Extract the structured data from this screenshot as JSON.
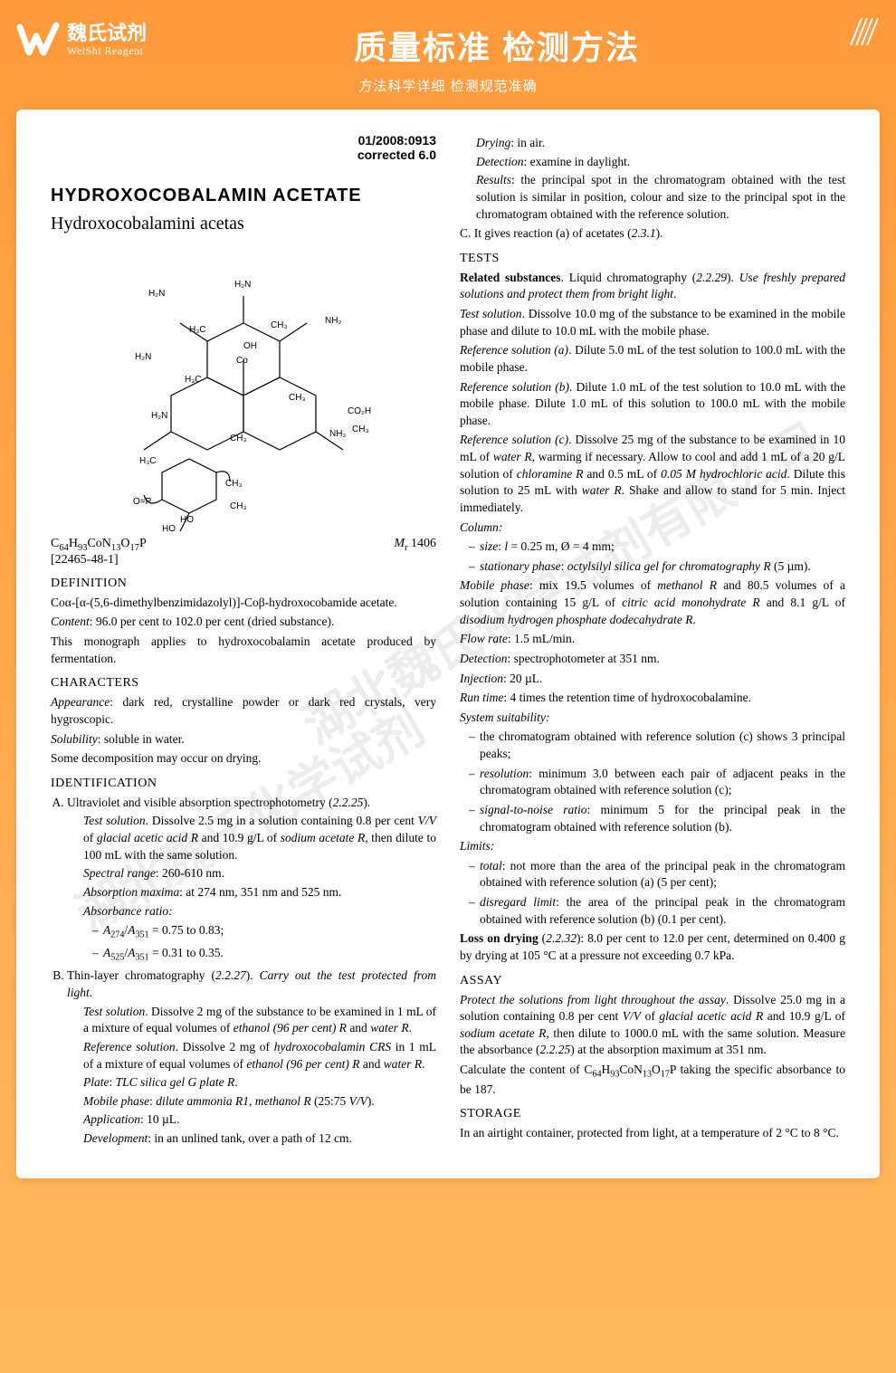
{
  "brand": {
    "cn": "魏氏试剂",
    "en": "WeiShi Reagent"
  },
  "header": {
    "title": "质量标准 检测方法",
    "subtitle": "方法科学详细 检测规范准确"
  },
  "meta": {
    "line1": "01/2008:0913",
    "line2": "corrected 6.0"
  },
  "mono": {
    "title": "HYDROXOCOBALAMIN ACETATE",
    "latin": "Hydroxocobalamini acetas",
    "formula": "C64H93CoN13O17P",
    "formula_html": "C<sub>64</sub>H<sub>93</sub>CoN<sub>13</sub>O<sub>17</sub>P",
    "mr": "Mr 1406",
    "mr_html": "<span class='ital'>M</span><sub>r</sub> 1406",
    "cas": "[22465-48-1]"
  },
  "def": {
    "head": "DEFINITION",
    "name": "Coα-[α-(5,6-dimethylbenzimidazolyl)]-Coβ-hydroxocobamide acetate.",
    "content": "Content: 96.0 per cent to 102.0 per cent (dried substance).",
    "note": "This monograph applies to hydroxocobalamin acetate produced by fermentation."
  },
  "char": {
    "head": "CHARACTERS",
    "appearance": "Appearance: dark red, crystalline powder or dark red crystals, very hygroscopic.",
    "solubility": "Solubility: soluble in water.",
    "note": "Some decomposition may occur on drying."
  },
  "ident": {
    "head": "IDENTIFICATION",
    "a": {
      "intro": "Ultraviolet and visible absorption spectrophotometry (2.2.25).",
      "test": "Test solution. Dissolve 2.5 mg in a solution containing 0.8 per cent V/V of glacial acetic acid R and 10.9 g/L of sodium acetate R, then dilute to 100 mL with the same solution.",
      "range": "Spectral range: 260-610 nm.",
      "maxima": "Absorption maxima: at 274 nm, 351 nm and 525 nm.",
      "ratio_head": "Absorbance ratio:",
      "r1": "A274/A351 = 0.75 to 0.83;",
      "r1_html": "<span class='ital'>A</span><sub>274</sub>/<span class='ital'>A</span><sub>351</sub> = 0.75 to 0.83;",
      "r2": "A525/A351 = 0.31 to 0.35.",
      "r2_html": "<span class='ital'>A</span><sub>525</sub>/<span class='ital'>A</span><sub>351</sub> = 0.31 to 0.35."
    },
    "b": {
      "intro": "Thin-layer chromatography (2.2.27). Carry out the test protected from light.",
      "test": "Test solution. Dissolve 2 mg of the substance to be examined in 1 mL of a mixture of equal volumes of ethanol (96 per cent) R and water R.",
      "ref": "Reference solution. Dissolve 2 mg of hydroxocobalamin CRS in 1 mL of a mixture of equal volumes of ethanol (96 per cent) R and water R.",
      "plate": "Plate: TLC silica gel G plate R.",
      "mobile": "Mobile phase: dilute ammonia R1, methanol R (25:75 V/V).",
      "app": "Application: 10 µL.",
      "dev": "Development: in an unlined tank, over a path of 12 cm.",
      "dry": "Drying: in air.",
      "det": "Detection: examine in daylight.",
      "res": "Results: the principal spot in the chromatogram obtained with the test solution is similar in position, colour and size to the principal spot in the chromatogram obtained with the reference solution."
    },
    "c": "It gives reaction (a) of acetates (2.3.1)."
  },
  "tests": {
    "head": "TESTS",
    "rel": {
      "head": "Related substances. Liquid chromatography (2.2.29). Use freshly prepared solutions and protect them from bright light.",
      "test": "Test solution. Dissolve 10.0 mg of the substance to be examined in the mobile phase and dilute to 10.0 mL with the mobile phase.",
      "refa": "Reference solution (a). Dilute 5.0 mL of the test solution to 100.0 mL with the mobile phase.",
      "refb": "Reference solution (b). Dilute 1.0 mL of the test solution to 10.0 mL with the mobile phase. Dilute 1.0 mL of this solution to 100.0 mL with the mobile phase.",
      "refc": "Reference solution (c). Dissolve 25 mg of the substance to be examined in 10 mL of water R, warming if necessary. Allow to cool and add 1 mL of a 20 g/L solution of chloramine R and 0.5 mL of 0.05 M hydrochloric acid. Dilute this solution to 25 mL with water R. Shake and allow to stand for 5 min. Inject immediately.",
      "column_head": "Column:",
      "col1": "size: l = 0.25 m, Ø = 4 mm;",
      "col2": "stationary phase: octylsilyl silica gel for chromatography R (5 µm).",
      "mobile": "Mobile phase: mix 19.5 volumes of methanol R and 80.5 volumes of a solution containing 15 g/L of citric acid monohydrate R and 8.1 g/L of disodium hydrogen phosphate dodecahydrate R.",
      "flow": "Flow rate: 1.5 mL/min.",
      "det": "Detection: spectrophotometer at 351 nm.",
      "inj": "Injection: 20 µL.",
      "run": "Run time: 4 times the retention time of hydroxocobalamine.",
      "sys_head": "System suitability:",
      "sys1": "the chromatogram obtained with reference solution (c) shows 3 principal peaks;",
      "sys2": "resolution: minimum 3.0 between each pair of adjacent peaks in the chromatogram obtained with reference solution (c);",
      "sys3": "signal-to-noise ratio: minimum 5 for the principal peak in the chromatogram obtained with reference solution (b).",
      "lim_head": "Limits:",
      "lim1": "total: not more than the area of the principal peak in the chromatogram obtained with reference solution (a) (5 per cent);",
      "lim2": "disregard limit: the area of the principal peak in the chromatogram obtained with reference solution (b) (0.1 per cent)."
    },
    "loss": "Loss on drying (2.2.32): 8.0 per cent to 12.0 per cent, determined on 0.400 g by drying at 105 °C at a pressure not exceeding 0.7 kPa."
  },
  "assay": {
    "head": "ASSAY",
    "p1": "Protect the solutions from light throughout the assay. Dissolve 25.0 mg in a solution containing 0.8 per cent V/V of glacial acetic acid R and 10.9 g/L of sodium acetate R, then dilute to 1000.0 mL with the same solution. Measure the absorbance (2.2.25) at the absorption maximum at 351 nm.",
    "p2": "Calculate the content of C64H93CoN13O17P taking the specific absorbance to be 187.",
    "p2_html": "Calculate the content of C<sub>64</sub>H<sub>93</sub>CoN<sub>13</sub>O<sub>17</sub>P taking the specific absorbance to be 187."
  },
  "storage": {
    "head": "STORAGE",
    "text": "In an airtight container, protected from light, at a temperature of 2 °C to 8 °C."
  },
  "watermark": {
    "l1": "湖北魏氏化学试剂有限公司",
    "l2": "湖北魏氏化学试剂"
  },
  "colors": {
    "bg_top": "#ff9a3c",
    "bg_bottom": "#ffb85c",
    "text": "#000000"
  }
}
